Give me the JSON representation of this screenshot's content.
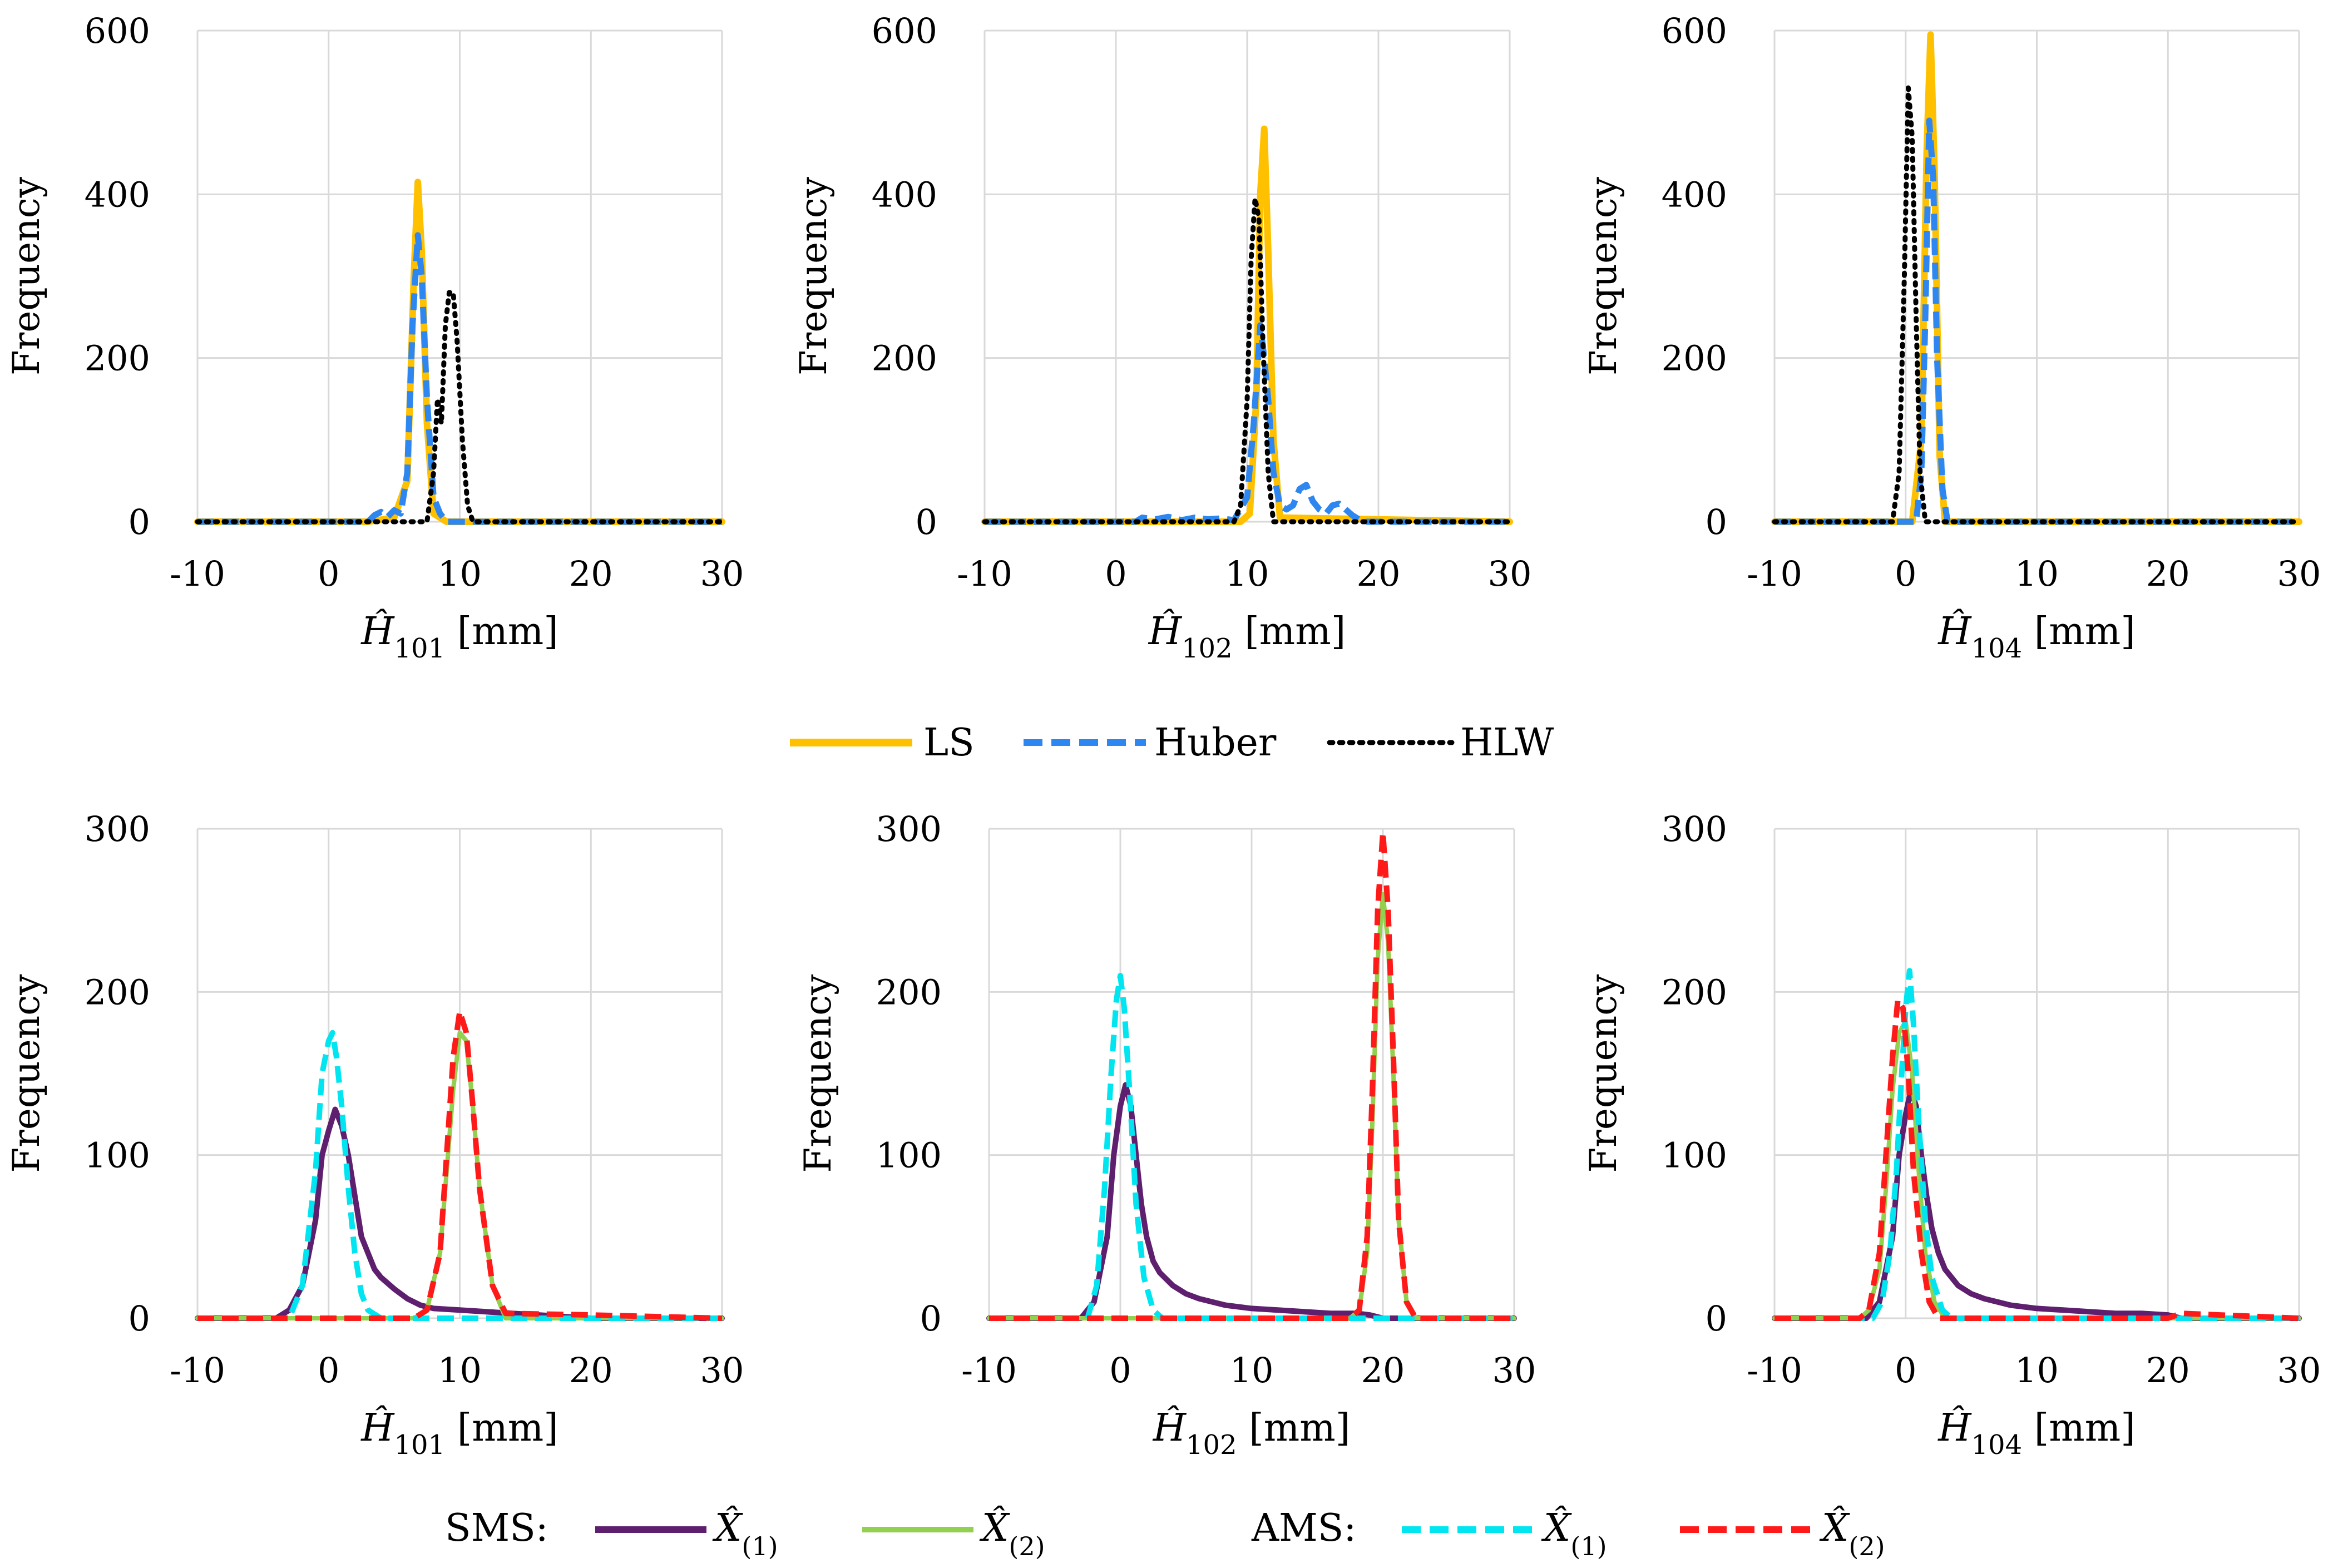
{
  "chart_data": [
    {
      "type": "line",
      "panel": "top-1",
      "xlabel_symbol": "Ĥ",
      "xlabel_sub": "101",
      "xlabel_unit": "[mm]",
      "ylabel": "Frequency",
      "xlim": [
        -10,
        30
      ],
      "ylim": [
        0,
        600
      ],
      "xticks": [
        "-10",
        "0",
        "10",
        "20",
        "30"
      ],
      "yticks": [
        "0",
        "200",
        "400",
        "600"
      ],
      "grid": true,
      "series": [
        {
          "key": "LS",
          "x": [
            -10,
            3,
            5,
            6,
            6.5,
            6.8,
            7.1,
            7.5,
            8,
            9,
            30
          ],
          "y": [
            0,
            0,
            5,
            50,
            300,
            415,
            330,
            120,
            10,
            0,
            0
          ]
        },
        {
          "key": "Huber",
          "x": [
            -10,
            3,
            3.5,
            4,
            4.5,
            5,
            5.5,
            6,
            6.4,
            6.8,
            7.1,
            7.5,
            8,
            8.5,
            9,
            30
          ],
          "y": [
            0,
            0,
            8,
            12,
            6,
            14,
            10,
            60,
            240,
            350,
            300,
            150,
            30,
            10,
            0,
            0
          ]
        },
        {
          "key": "HLW",
          "x": [
            -10,
            7.5,
            8,
            8.3,
            8.6,
            8.9,
            9.2,
            9.5,
            9.8,
            10.2,
            10.6,
            11,
            30
          ],
          "y": [
            0,
            0,
            60,
            150,
            120,
            240,
            280,
            280,
            220,
            100,
            20,
            0,
            0
          ]
        }
      ]
    },
    {
      "type": "line",
      "panel": "top-2",
      "xlabel_symbol": "Ĥ",
      "xlabel_sub": "102",
      "xlabel_unit": "[mm]",
      "ylabel": "Frequency",
      "xlim": [
        -10,
        30
      ],
      "ylim": [
        0,
        600
      ],
      "xticks": [
        "-10",
        "0",
        "10",
        "20",
        "30"
      ],
      "yticks": [
        "0",
        "200",
        "400",
        "600"
      ],
      "grid": true,
      "series": [
        {
          "key": "LS",
          "x": [
            -10,
            9.5,
            10.2,
            10.7,
            11,
            11.3,
            11.6,
            12,
            12.5,
            30
          ],
          "y": [
            0,
            0,
            10,
            150,
            400,
            480,
            330,
            100,
            5,
            0
          ]
        },
        {
          "key": "Huber",
          "x": [
            -10,
            1.5,
            2,
            3,
            4,
            5,
            6,
            7,
            8,
            9,
            10,
            10.5,
            11,
            11.3,
            11.6,
            12,
            12.5,
            13,
            13.5,
            14,
            14.5,
            15,
            15.5,
            16,
            16.5,
            17,
            17.5,
            18,
            18.5,
            19,
            30
          ],
          "y": [
            0,
            0,
            5,
            3,
            6,
            2,
            5,
            3,
            4,
            2,
            30,
            120,
            240,
            200,
            150,
            60,
            20,
            15,
            20,
            40,
            45,
            25,
            15,
            10,
            20,
            22,
            15,
            8,
            3,
            0,
            0
          ]
        },
        {
          "key": "HLW",
          "x": [
            -10,
            9,
            9.5,
            10,
            10.3,
            10.6,
            10.9,
            11.2,
            11.6,
            12,
            30
          ],
          "y": [
            0,
            0,
            20,
            150,
            320,
            395,
            370,
            220,
            60,
            0,
            0
          ]
        }
      ]
    },
    {
      "type": "line",
      "panel": "top-3",
      "xlabel_symbol": "Ĥ",
      "xlabel_sub": "104",
      "xlabel_unit": "[mm]",
      "ylabel": "Frequency",
      "xlim": [
        -10,
        30
      ],
      "ylim": [
        0,
        600
      ],
      "xticks": [
        "-10",
        "0",
        "10",
        "20",
        "30"
      ],
      "yticks": [
        "0",
        "200",
        "400",
        "600"
      ],
      "grid": true,
      "series": [
        {
          "key": "LS",
          "x": [
            -10,
            0.5,
            1.2,
            1.6,
            1.9,
            2.2,
            2.6,
            3,
            30
          ],
          "y": [
            0,
            0,
            100,
            450,
            595,
            430,
            80,
            0,
            0
          ]
        },
        {
          "key": "Huber",
          "x": [
            -10,
            0.8,
            1.2,
            1.5,
            1.8,
            2.1,
            2.4,
            2.8,
            3.2,
            30
          ],
          "y": [
            0,
            0,
            60,
            250,
            490,
            420,
            200,
            40,
            0,
            0
          ]
        },
        {
          "key": "HLW",
          "x": [
            -10,
            -1,
            -0.5,
            -0.1,
            0.2,
            0.5,
            0.8,
            1.1,
            1.5,
            30
          ],
          "y": [
            0,
            0,
            60,
            300,
            530,
            470,
            250,
            60,
            0,
            0
          ]
        }
      ]
    },
    {
      "type": "line",
      "panel": "bottom-1",
      "xlabel_symbol": "Ĥ",
      "xlabel_sub": "101",
      "xlabel_unit": "[mm]",
      "ylabel": "Frequency",
      "xlim": [
        -10,
        30
      ],
      "ylim": [
        0,
        300
      ],
      "xticks": [
        "-10",
        "0",
        "10",
        "20",
        "30"
      ],
      "yticks": [
        "0",
        "100",
        "200",
        "300"
      ],
      "grid": true,
      "series": [
        {
          "key": "SMS_X1",
          "x": [
            -10,
            -4,
            -3,
            -2,
            -1,
            -0.5,
            0,
            0.5,
            1,
            1.5,
            2,
            2.5,
            3,
            3.5,
            4,
            5,
            6,
            7,
            8,
            10,
            12,
            14,
            16,
            18,
            20,
            30
          ],
          "y": [
            0,
            0,
            5,
            20,
            60,
            100,
            115,
            128,
            118,
            100,
            75,
            50,
            40,
            30,
            25,
            18,
            12,
            8,
            6,
            5,
            4,
            3,
            2,
            1,
            0,
            0
          ]
        },
        {
          "key": "SMS_X2",
          "x": [
            -10,
            6.5,
            7.5,
            8.5,
            9,
            9.5,
            10,
            10.5,
            11,
            11.5,
            12.5,
            13.5,
            30
          ],
          "y": [
            0,
            0,
            5,
            40,
            90,
            140,
            175,
            170,
            130,
            80,
            20,
            0,
            0
          ]
        },
        {
          "key": "AMS_X1",
          "x": [
            -10,
            -3,
            -2,
            -1,
            -0.5,
            0,
            0.3,
            0.6,
            1,
            1.5,
            2,
            2.5,
            3,
            4,
            30
          ],
          "y": [
            0,
            0,
            20,
            90,
            150,
            170,
            175,
            160,
            130,
            80,
            40,
            15,
            5,
            0,
            0
          ]
        },
        {
          "key": "AMS_X2",
          "x": [
            -10,
            6.5,
            7.5,
            8.5,
            9,
            9.5,
            10,
            10.5,
            11,
            11.5,
            12.5,
            13.5,
            20,
            30
          ],
          "y": [
            0,
            0,
            5,
            40,
            100,
            160,
            188,
            175,
            130,
            80,
            20,
            3,
            2,
            0
          ]
        }
      ]
    },
    {
      "type": "line",
      "panel": "bottom-2",
      "xlabel_symbol": "Ĥ",
      "xlabel_sub": "102",
      "xlabel_unit": "[mm]",
      "ylabel": "Frequency",
      "xlim": [
        -10,
        30
      ],
      "ylim": [
        0,
        300
      ],
      "xticks": [
        "-10",
        "0",
        "10",
        "20",
        "30"
      ],
      "yticks": [
        "0",
        "100",
        "200",
        "300"
      ],
      "grid": true,
      "series": [
        {
          "key": "SMS_X1",
          "x": [
            -10,
            -3,
            -2,
            -1,
            -0.5,
            0,
            0.4,
            0.8,
            1.2,
            1.6,
            2,
            2.5,
            3,
            4,
            5,
            6,
            8,
            10,
            12,
            14,
            16,
            18,
            19,
            20,
            30
          ],
          "y": [
            0,
            0,
            10,
            50,
            100,
            130,
            143,
            130,
            100,
            70,
            50,
            35,
            28,
            20,
            15,
            12,
            8,
            6,
            5,
            4,
            3,
            3,
            2,
            0,
            0
          ]
        },
        {
          "key": "SMS_X2",
          "x": [
            -10,
            17.5,
            18.2,
            18.8,
            19.2,
            19.6,
            20,
            20.4,
            20.8,
            21.2,
            21.8,
            22.5,
            30
          ],
          "y": [
            0,
            0,
            5,
            40,
            120,
            220,
            260,
            230,
            150,
            60,
            10,
            0,
            0
          ]
        },
        {
          "key": "AMS_X1",
          "x": [
            -10,
            -2.5,
            -1.8,
            -1.2,
            -0.7,
            -0.3,
            0,
            0.3,
            0.7,
            1.2,
            1.8,
            2.5,
            3.2,
            30
          ],
          "y": [
            0,
            0,
            20,
            80,
            150,
            195,
            210,
            190,
            140,
            70,
            25,
            5,
            0,
            0
          ]
        },
        {
          "key": "AMS_X2",
          "x": [
            -10,
            17.5,
            18.2,
            18.8,
            19.2,
            19.6,
            20,
            20.4,
            20.8,
            21.2,
            21.8,
            22.5,
            30
          ],
          "y": [
            0,
            0,
            5,
            50,
            140,
            250,
            298,
            250,
            160,
            60,
            10,
            0,
            0
          ]
        }
      ]
    },
    {
      "type": "line",
      "panel": "bottom-3",
      "xlabel_symbol": "Ĥ",
      "xlabel_sub": "104",
      "xlabel_unit": "[mm]",
      "ylabel": "Frequency",
      "xlim": [
        -10,
        30
      ],
      "ylim": [
        0,
        300
      ],
      "xticks": [
        "-10",
        "0",
        "10",
        "20",
        "30"
      ],
      "yticks": [
        "0",
        "100",
        "200",
        "300"
      ],
      "grid": true,
      "series": [
        {
          "key": "SMS_X1",
          "x": [
            -10,
            -3,
            -2,
            -1,
            -0.5,
            0,
            0.4,
            0.8,
            1.2,
            1.6,
            2,
            2.5,
            3,
            4,
            5,
            6,
            8,
            10,
            12,
            14,
            16,
            18,
            20,
            21,
            30
          ],
          "y": [
            0,
            0,
            10,
            50,
            100,
            125,
            140,
            130,
            100,
            75,
            55,
            40,
            30,
            20,
            15,
            12,
            8,
            6,
            5,
            4,
            3,
            3,
            2,
            0,
            0
          ]
        },
        {
          "key": "SMS_X2",
          "x": [
            -10,
            -3.5,
            -2.8,
            -2,
            -1.5,
            -1,
            -0.5,
            0,
            0.5,
            1,
            1.5,
            2.2,
            3,
            30
          ],
          "y": [
            0,
            0,
            5,
            30,
            80,
            140,
            175,
            182,
            150,
            90,
            40,
            10,
            0,
            0
          ]
        },
        {
          "key": "AMS_X1",
          "x": [
            -10,
            -2.5,
            -1.8,
            -1.2,
            -0.7,
            -0.3,
            0,
            0.3,
            0.6,
            1,
            1.5,
            2,
            2.8,
            3.5,
            30
          ],
          "y": [
            0,
            0,
            10,
            40,
            90,
            150,
            190,
            213,
            180,
            120,
            60,
            25,
            5,
            0,
            0
          ]
        },
        {
          "key": "AMS_X2",
          "x": [
            -10,
            -3.5,
            -2.8,
            -2,
            -1.5,
            -1,
            -0.6,
            -0.2,
            0.2,
            0.6,
            1.2,
            1.8,
            2.5,
            20,
            21,
            30
          ],
          "y": [
            0,
            0,
            5,
            40,
            100,
            160,
            195,
            190,
            150,
            90,
            40,
            10,
            0,
            0,
            3,
            0
          ]
        }
      ]
    }
  ],
  "legend_top": [
    {
      "key": "LS",
      "label": "LS",
      "color": "#FFC000",
      "style": "solid"
    },
    {
      "key": "Huber",
      "label": "Huber",
      "color": "#2E86F0",
      "style": "dashed"
    },
    {
      "key": "HLW",
      "label": "HLW",
      "color": "#000000",
      "style": "dotted"
    }
  ],
  "legend_bottom": {
    "sms_label": "SMS:",
    "ams_label": "AMS:",
    "entries": [
      {
        "key": "SMS_X1",
        "symbol": "X̂",
        "sub": "(1)",
        "color": "#5E1F6E",
        "style": "solid"
      },
      {
        "key": "SMS_X2",
        "symbol": "X̂",
        "sub": "(2)",
        "color": "#92D050",
        "style": "solid"
      },
      {
        "key": "AMS_X1",
        "symbol": "X̂",
        "sub": "(1)",
        "color": "#00E5F0",
        "style": "dashed"
      },
      {
        "key": "AMS_X2",
        "symbol": "X̂",
        "sub": "(2)",
        "color": "#FF1A1A",
        "style": "dashed"
      }
    ]
  }
}
